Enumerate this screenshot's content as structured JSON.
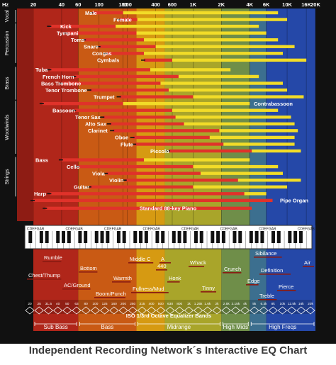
{
  "caption": "Independent Recording Network´s Interactive EQ Chart",
  "chart_data": {
    "type": "bar",
    "orientation": "horizontal-range",
    "x_scale": "log",
    "x_unit": "Hz",
    "x_range": [
      20,
      20000
    ],
    "top_axis_unit": "Hz",
    "top_axis_ticks": [
      "20",
      "40",
      "60",
      "100",
      "180",
      "200",
      "400",
      "600",
      "1K",
      "2K",
      "4K",
      "6K",
      "10K",
      "16K",
      "20K"
    ],
    "background_bands": [
      {
        "from": 20,
        "to": 60,
        "color": "#b0261a"
      },
      {
        "from": 60,
        "to": 250,
        "color": "#c95a14"
      },
      {
        "from": 250,
        "to": 500,
        "color": "#d69a12"
      },
      {
        "from": 500,
        "to": 2000,
        "color": "#a9a52a"
      },
      {
        "from": 2000,
        "to": 4000,
        "color": "#6f8e49"
      },
      {
        "from": 4000,
        "to": 6000,
        "color": "#3c6f8f"
      },
      {
        "from": 6000,
        "to": 20000,
        "color": "#2548a8"
      }
    ],
    "colors": {
      "fundamental": "#e0322a",
      "harmonics": "#f2dc28",
      "black_extent": "#111111",
      "piano_bar": "#e0322a"
    },
    "groups": [
      {
        "name": "Vocal",
        "instruments": [
          "Male",
          "Female"
        ]
      },
      {
        "name": "Percussion",
        "instruments": [
          "Kick",
          "Tympani",
          "Toms",
          "Snare",
          "Congas",
          "Cymbals"
        ]
      },
      {
        "name": "Brass",
        "instruments": [
          "Tuba",
          "French Horn",
          "Bass Trombone",
          "Tenor Trombone",
          "Trumpet"
        ]
      },
      {
        "name": "Woodwinds",
        "instruments": [
          "Contrabassoon",
          "Bassoon",
          "Tenor Sax",
          "Alto Sax",
          "Clarinet",
          "Oboe",
          "Flute",
          "Piccolo"
        ]
      },
      {
        "name": "Strings",
        "instruments": [
          "Bass",
          "Cello",
          "Viola",
          "Violin",
          "Guitar",
          "Harp"
        ]
      }
    ],
    "instruments": [
      {
        "name": "Male",
        "fundamental": [
          85,
          180
        ],
        "harmonics": [
          180,
          8000
        ]
      },
      {
        "name": "Female",
        "fundamental": [
          165,
          255
        ],
        "harmonics": [
          255,
          10000
        ]
      },
      {
        "name": "Kick",
        "fundamental": [
          30,
          150
        ],
        "harmonics": [
          150,
          5000
        ]
      },
      {
        "name": "Tympani",
        "fundamental": [
          45,
          250
        ],
        "harmonics": [
          250,
          6000
        ]
      },
      {
        "name": "Toms",
        "fundamental": [
          70,
          300
        ],
        "harmonics": [
          300,
          8000
        ]
      },
      {
        "name": "Snare",
        "fundamental": [
          100,
          400
        ],
        "harmonics": [
          400,
          12000
        ]
      },
      {
        "name": "Congas",
        "fundamental": [
          120,
          300
        ],
        "harmonics": [
          300,
          9000
        ]
      },
      {
        "name": "Cymbals",
        "fundamental": [
          300,
          600
        ],
        "harmonics": [
          600,
          16000
        ]
      },
      {
        "name": "Tuba",
        "fundamental": [
          30,
          350
        ],
        "harmonics": [
          350,
          2500
        ]
      },
      {
        "name": "French Horn",
        "fundamental": [
          55,
          700
        ],
        "harmonics": [
          700,
          5000
        ]
      },
      {
        "name": "Bass Trombone",
        "fundamental": [
          40,
          450
        ],
        "harmonics": [
          450,
          9000
        ]
      },
      {
        "name": "Tenor Trombone",
        "fundamental": [
          80,
          550
        ],
        "harmonics": [
          550,
          10000
        ]
      },
      {
        "name": "Trumpet",
        "fundamental": [
          165,
          1000
        ],
        "harmonics": [
          1000,
          15000
        ]
      },
      {
        "name": "Contrabassoon",
        "fundamental": [
          25,
          180
        ],
        "harmonics": [
          180,
          4000
        ]
      },
      {
        "name": "Bassoon",
        "fundamental": [
          55,
          600
        ],
        "harmonics": [
          600,
          8000
        ]
      },
      {
        "name": "Tenor Sax",
        "fundamental": [
          110,
          650
        ],
        "harmonics": [
          650,
          11000
        ]
      },
      {
        "name": "Alto Sax",
        "fundamental": [
          130,
          800
        ],
        "harmonics": [
          800,
          12000
        ]
      },
      {
        "name": "Clarinet",
        "fundamental": [
          140,
          1900
        ],
        "harmonics": [
          1900,
          13000
        ]
      },
      {
        "name": "Oboe",
        "fundamental": [
          230,
          1500
        ],
        "harmonics": [
          1500,
          12000
        ]
      },
      {
        "name": "Flute",
        "fundamental": [
          240,
          2100
        ],
        "harmonics": [
          2100,
          12000
        ]
      },
      {
        "name": "Piccolo",
        "fundamental": [
          550,
          4200
        ],
        "harmonics": [
          4200,
          14000
        ]
      },
      {
        "name": "Bass",
        "fundamental": [
          40,
          300
        ],
        "harmonics": [
          300,
          4000
        ]
      },
      {
        "name": "Cello",
        "fundamental": [
          60,
          1000
        ],
        "harmonics": [
          1000,
          8000
        ]
      },
      {
        "name": "Viola",
        "fundamental": [
          120,
          1200
        ],
        "harmonics": [
          1200,
          9000
        ]
      },
      {
        "name": "Violin",
        "fundamental": [
          190,
          3000
        ],
        "harmonics": [
          3000,
          14000
        ]
      },
      {
        "name": "Guitar",
        "fundamental": [
          80,
          1000
        ],
        "harmonics": [
          1000,
          10000
        ]
      },
      {
        "name": "Harp",
        "fundamental": [
          30,
          3500
        ],
        "harmonics": [
          3500,
          6000
        ]
      },
      {
        "name": "Pipe Organ",
        "fundamental": [
          20,
          7000
        ],
        "harmonics": []
      },
      {
        "name": "Standard 88-key Piano",
        "fundamental": [
          27,
          4200
        ],
        "harmonics": []
      }
    ],
    "piano_keyboard": {
      "octave_labels": "C D E F G A B",
      "octaves": 8
    },
    "descriptors": [
      {
        "text": "Rumble",
        "freq": 40
      },
      {
        "text": "Bottom",
        "freq": 80
      },
      {
        "text": "Chest/Thump",
        "freq": 30
      },
      {
        "text": "AC/Ground",
        "freq": 60
      },
      {
        "text": "Warmth",
        "freq": 200
      },
      {
        "text": "Boom/Punch",
        "freq": 150
      },
      {
        "text": "Middle C",
        "freq": 262
      },
      {
        "text": "A",
        "freq": 440
      },
      {
        "text": "440",
        "freq": 440
      },
      {
        "text": "Fullness/Mud",
        "freq": 350
      },
      {
        "text": "Honk",
        "freq": 700
      },
      {
        "text": "Whack",
        "freq": 900
      },
      {
        "text": "Tinny",
        "freq": 1200
      },
      {
        "text": "Crunch",
        "freq": 2000
      },
      {
        "text": "Sibilance",
        "freq": 5000
      },
      {
        "text": "Definition",
        "freq": 6000
      },
      {
        "text": "Edge",
        "freq": 3500
      },
      {
        "text": "Pierce",
        "freq": 8000
      },
      {
        "text": "Air",
        "freq": 15000
      },
      {
        "text": "Treble",
        "freq": 5000
      }
    ],
    "eq_band_title": "ISO 1/3rd Octave Equalizer Bands",
    "eq_bands": [
      "20",
      "25",
      "31.5",
      "40",
      "50",
      "63",
      "80",
      "100",
      "125",
      "160",
      "200",
      "250",
      "315",
      "400",
      "500",
      "630",
      "800",
      "1k",
      "1.25k",
      "1.6k",
      "2k",
      "2.5k",
      "3.15k",
      "4k",
      "5k",
      "6.3k",
      "8k",
      "10k",
      "12.5k",
      "16k",
      "20k"
    ],
    "ranges": [
      {
        "label": "Sub Bass",
        "from": 20,
        "to": 60
      },
      {
        "label": "Bass",
        "from": 60,
        "to": 250
      },
      {
        "label": "Midrange",
        "from": 250,
        "to": 2000
      },
      {
        "label": "High Mids",
        "from": 2000,
        "to": 4000
      },
      {
        "label": "High Freqs",
        "from": 4000,
        "to": 20000
      }
    ]
  }
}
